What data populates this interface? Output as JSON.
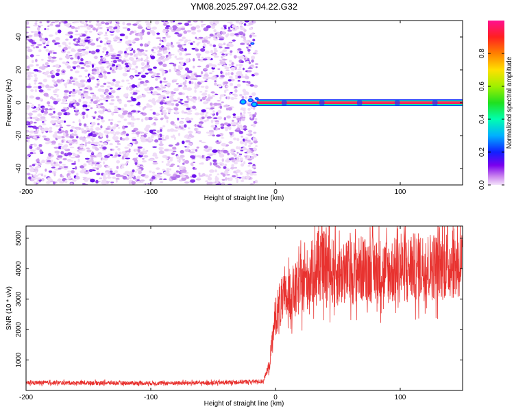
{
  "title": "YM08.2025.297.04.22.G32",
  "chart_data": [
    {
      "type": "heatmap",
      "xlabel": "Height of straight line (km)",
      "ylabel": "Frequency (Hz)",
      "xlim": [
        -200,
        150
      ],
      "ylim": [
        -50,
        50
      ],
      "xticks": [
        "-200",
        "-100",
        "0",
        "100"
      ],
      "xtick_values": [
        -200,
        -100,
        0,
        100
      ],
      "yticks": [
        "-40",
        "-20",
        "0",
        "20",
        "40"
      ],
      "ytick_values": [
        -40,
        -20,
        0,
        20,
        40
      ],
      "noise_region_x": [
        -200,
        -15
      ],
      "carrier": {
        "frequency_hz": 0,
        "x_start": -15,
        "x_end": 150,
        "amplitude": 0.9
      },
      "colorbar": {
        "label": "Normalized spectral amplitude",
        "range": [
          0,
          1
        ],
        "ticks": [
          "0.0",
          "0.2",
          "0.4",
          "0.6",
          "0.8"
        ],
        "tick_values": [
          0.0,
          0.2,
          0.4,
          0.6,
          0.8
        ]
      },
      "grid": false
    },
    {
      "type": "line",
      "xlabel": "Height of straight line (km)",
      "ylabel": "SNR (10 * v/v)",
      "xlim": [
        -200,
        150
      ],
      "ylim": [
        0,
        5400
      ],
      "xticks": [
        "-200",
        "-100",
        "0",
        "100"
      ],
      "xtick_values": [
        -200,
        -100,
        0,
        100
      ],
      "yticks": [
        "1000",
        "2000",
        "3000",
        "4000",
        "5000"
      ],
      "ytick_values": [
        1000,
        2000,
        3000,
        4000,
        5000
      ],
      "color": "#e8322f",
      "x": [
        -200,
        -150,
        -100,
        -50,
        -10,
        -5,
        0,
        5,
        10,
        20,
        30,
        40,
        50,
        70,
        90,
        110,
        130,
        150
      ],
      "y": [
        250,
        250,
        240,
        250,
        300,
        800,
        2500,
        2900,
        3100,
        3400,
        3900,
        4100,
        3800,
        4000,
        3900,
        4050,
        4100,
        4200
      ],
      "grid": false
    }
  ]
}
